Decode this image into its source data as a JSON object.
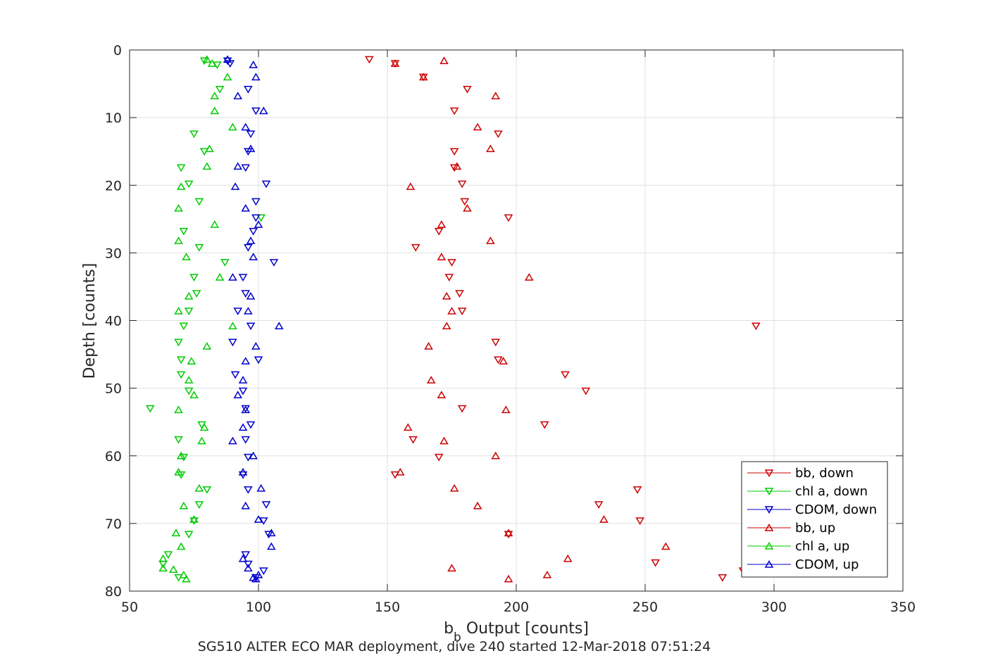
{
  "chart_data": {
    "type": "scatter",
    "xlabel_main": "b",
    "xlabel_sub": "b",
    "xlabel_rest": " Output [counts]",
    "ylabel": "Depth [counts]",
    "caption": "SG510 ALTER ECO MAR deployment, dive 240 started 12-Mar-2018 07:51:24",
    "xlim": [
      50,
      350
    ],
    "ylim": [
      0,
      80
    ],
    "y_reversed": true,
    "x_ticks": [
      "50",
      "100",
      "150",
      "200",
      "250",
      "300",
      "350"
    ],
    "y_ticks": [
      "0",
      "10",
      "20",
      "30",
      "40",
      "50",
      "60",
      "70",
      "80"
    ],
    "grid": true,
    "legend_position": "bottom-right",
    "series": [
      {
        "name": "bb, down",
        "color": "#cc0000",
        "marker": "triangle-down",
        "points": [
          [
            143,
            1.4
          ],
          [
            153,
            2.0
          ],
          [
            164,
            4.0
          ],
          [
            181,
            5.8
          ],
          [
            176,
            9.0
          ],
          [
            193,
            12.4
          ],
          [
            176,
            15.0
          ],
          [
            176,
            17.4
          ],
          [
            179,
            19.8
          ],
          [
            180,
            22.4
          ],
          [
            197,
            24.8
          ],
          [
            170,
            26.8
          ],
          [
            161,
            29.2
          ],
          [
            175,
            31.4
          ],
          [
            174,
            33.6
          ],
          [
            178,
            36.0
          ],
          [
            179,
            38.6
          ],
          [
            293,
            40.8
          ],
          [
            192,
            43.2
          ],
          [
            193,
            45.8
          ],
          [
            219,
            48.0
          ],
          [
            227,
            50.4
          ],
          [
            179,
            53.0
          ],
          [
            211,
            55.4
          ],
          [
            160,
            57.6
          ],
          [
            170,
            60.2
          ],
          [
            153,
            62.8
          ],
          [
            247,
            65.0
          ],
          [
            232,
            67.2
          ],
          [
            248,
            69.6
          ],
          [
            197,
            71.6
          ],
          [
            254,
            75.8
          ],
          [
            280,
            78.0
          ],
          [
            288,
            77.0
          ]
        ]
      },
      {
        "name": "chl a, down",
        "color": "#00cc00",
        "marker": "triangle-down",
        "points": [
          [
            79,
            1.6
          ],
          [
            84,
            2.2
          ],
          [
            85,
            5.8
          ],
          [
            75,
            12.4
          ],
          [
            79,
            15.0
          ],
          [
            70,
            17.4
          ],
          [
            73,
            19.8
          ],
          [
            77,
            22.4
          ],
          [
            101,
            24.8
          ],
          [
            71,
            26.8
          ],
          [
            77,
            29.2
          ],
          [
            87,
            31.4
          ],
          [
            75,
            33.6
          ],
          [
            76,
            36.0
          ],
          [
            73,
            38.6
          ],
          [
            71,
            40.8
          ],
          [
            69,
            43.2
          ],
          [
            70,
            45.8
          ],
          [
            70,
            48.0
          ],
          [
            73,
            50.4
          ],
          [
            58,
            53.0
          ],
          [
            78,
            55.4
          ],
          [
            69,
            57.6
          ],
          [
            71,
            60.2
          ],
          [
            70,
            62.8
          ],
          [
            80,
            65.0
          ],
          [
            77,
            67.2
          ],
          [
            75,
            69.6
          ],
          [
            73,
            71.6
          ],
          [
            65,
            74.6
          ],
          [
            63,
            76.0
          ],
          [
            69,
            78.0
          ]
        ]
      },
      {
        "name": "CDOM, down",
        "color": "#0000cc",
        "marker": "triangle-down",
        "points": [
          [
            88,
            1.6
          ],
          [
            89,
            2.0
          ],
          [
            96,
            5.8
          ],
          [
            99,
            9.0
          ],
          [
            97,
            12.4
          ],
          [
            96,
            15.0
          ],
          [
            95,
            17.4
          ],
          [
            103,
            19.8
          ],
          [
            99,
            22.4
          ],
          [
            99,
            24.8
          ],
          [
            98,
            26.8
          ],
          [
            96,
            29.2
          ],
          [
            106,
            31.4
          ],
          [
            94,
            33.6
          ],
          [
            95,
            36.0
          ],
          [
            92,
            38.6
          ],
          [
            97,
            40.8
          ],
          [
            90,
            43.2
          ],
          [
            100,
            45.8
          ],
          [
            91,
            48.0
          ],
          [
            94,
            50.4
          ],
          [
            95,
            53.0
          ],
          [
            97,
            55.4
          ],
          [
            95,
            57.6
          ],
          [
            96,
            60.2
          ],
          [
            94,
            62.8
          ],
          [
            96,
            65.0
          ],
          [
            103,
            67.2
          ],
          [
            102,
            69.6
          ],
          [
            104,
            71.6
          ],
          [
            95,
            74.6
          ],
          [
            96,
            76.0
          ],
          [
            102,
            77.0
          ],
          [
            99,
            78.0
          ]
        ]
      },
      {
        "name": "bb, up",
        "color": "#cc0000",
        "marker": "triangle-up",
        "points": [
          [
            172,
            1.6
          ],
          [
            153,
            2.0
          ],
          [
            164,
            4.0
          ],
          [
            192,
            6.8
          ],
          [
            185,
            11.4
          ],
          [
            190,
            14.6
          ],
          [
            177,
            17.2
          ],
          [
            159,
            20.2
          ],
          [
            181,
            23.4
          ],
          [
            171,
            25.8
          ],
          [
            190,
            28.2
          ],
          [
            171,
            30.6
          ],
          [
            205,
            33.6
          ],
          [
            173,
            36.4
          ],
          [
            175,
            38.6
          ],
          [
            173,
            40.8
          ],
          [
            166,
            43.8
          ],
          [
            195,
            46.0
          ],
          [
            167,
            48.8
          ],
          [
            171,
            51.0
          ],
          [
            196,
            53.2
          ],
          [
            158,
            55.8
          ],
          [
            172,
            57.8
          ],
          [
            192,
            60.0
          ],
          [
            155,
            62.4
          ],
          [
            176,
            64.8
          ],
          [
            185,
            67.4
          ],
          [
            234,
            69.4
          ],
          [
            197,
            71.4
          ],
          [
            258,
            73.4
          ],
          [
            220,
            75.2
          ],
          [
            175,
            76.6
          ],
          [
            212,
            77.6
          ],
          [
            197,
            78.2
          ]
        ]
      },
      {
        "name": "chl a, up",
        "color": "#00cc00",
        "marker": "triangle-up",
        "points": [
          [
            80,
            1.4
          ],
          [
            82,
            2.0
          ],
          [
            88,
            4.0
          ],
          [
            83,
            6.8
          ],
          [
            83,
            9.0
          ],
          [
            90,
            11.4
          ],
          [
            81,
            14.6
          ],
          [
            80,
            17.2
          ],
          [
            70,
            20.2
          ],
          [
            69,
            23.4
          ],
          [
            83,
            25.8
          ],
          [
            69,
            28.2
          ],
          [
            72,
            30.6
          ],
          [
            85,
            33.6
          ],
          [
            73,
            36.4
          ],
          [
            69,
            38.6
          ],
          [
            90,
            40.8
          ],
          [
            80,
            43.8
          ],
          [
            74,
            46.0
          ],
          [
            73,
            48.8
          ],
          [
            75,
            51.0
          ],
          [
            69,
            53.2
          ],
          [
            79,
            55.8
          ],
          [
            78,
            57.8
          ],
          [
            70,
            60.0
          ],
          [
            69,
            62.4
          ],
          [
            77,
            64.8
          ],
          [
            71,
            67.4
          ],
          [
            75,
            69.4
          ],
          [
            68,
            71.4
          ],
          [
            70,
            73.4
          ],
          [
            63,
            75.2
          ],
          [
            63,
            76.6
          ],
          [
            67,
            76.8
          ],
          [
            71,
            77.6
          ],
          [
            72,
            78.2
          ]
        ]
      },
      {
        "name": "CDOM, up",
        "color": "#0000cc",
        "marker": "triangle-up",
        "points": [
          [
            88,
            1.4
          ],
          [
            98,
            2.2
          ],
          [
            99,
            4.0
          ],
          [
            92,
            6.8
          ],
          [
            102,
            9.0
          ],
          [
            95,
            11.4
          ],
          [
            97,
            14.6
          ],
          [
            92,
            17.2
          ],
          [
            91,
            20.2
          ],
          [
            95,
            23.4
          ],
          [
            100,
            25.8
          ],
          [
            97,
            28.2
          ],
          [
            98,
            30.6
          ],
          [
            90,
            33.6
          ],
          [
            97,
            36.4
          ],
          [
            96,
            38.6
          ],
          [
            108,
            40.8
          ],
          [
            99,
            43.8
          ],
          [
            95,
            46.0
          ],
          [
            94,
            48.8
          ],
          [
            92,
            51.0
          ],
          [
            95,
            53.2
          ],
          [
            94,
            55.8
          ],
          [
            90,
            57.8
          ],
          [
            98,
            60.0
          ],
          [
            94,
            62.4
          ],
          [
            101,
            64.8
          ],
          [
            95,
            67.4
          ],
          [
            100,
            69.4
          ],
          [
            105,
            71.4
          ],
          [
            105,
            73.4
          ],
          [
            94,
            75.2
          ],
          [
            96,
            76.6
          ],
          [
            100,
            77.6
          ],
          [
            98,
            78.0
          ],
          [
            99,
            78.2
          ]
        ]
      }
    ]
  }
}
